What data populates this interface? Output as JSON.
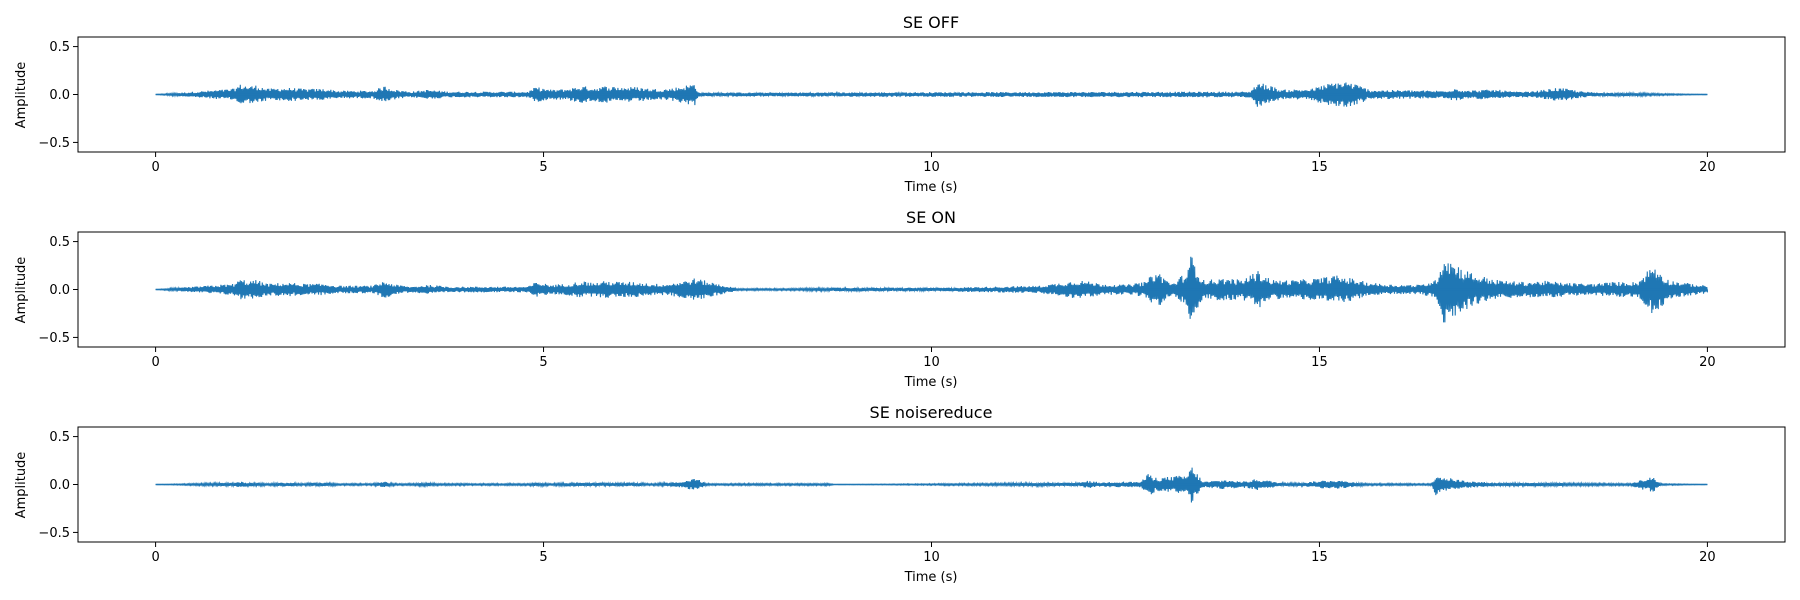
{
  "chart_data": [
    {
      "type": "line",
      "title": "SE OFF",
      "xlabel": "Time (s)",
      "ylabel": "Amplitude",
      "xlim": [
        -1,
        21
      ],
      "ylim": [
        -0.6,
        0.6
      ],
      "xticks": [
        0,
        5,
        10,
        15,
        20
      ],
      "xtick_labels": [
        "0",
        "5",
        "10",
        "15",
        "20"
      ],
      "yticks": [
        -0.5,
        0.0,
        0.5
      ],
      "ytick_labels": [
        "−0.5",
        "0.0",
        "0.5"
      ],
      "color": "#1f77b4",
      "grid": false,
      "series": [
        {
          "x": [
            0,
            1.0,
            1.1,
            1.2,
            1.3,
            1.45,
            1.6,
            1.75,
            1.9,
            2.05,
            2.2,
            2.35,
            2.8,
            2.95,
            3.1,
            3.3,
            3.5,
            3.65,
            3.8,
            4.8,
            4.9,
            5.1,
            5.3,
            5.5,
            5.65,
            5.8,
            6.0,
            6.2,
            6.4,
            6.6,
            6.8,
            6.95,
            7.0,
            14.1,
            14.2,
            14.35,
            14.5,
            14.9,
            15.05,
            15.2,
            15.35,
            15.5,
            15.65,
            16.6,
            16.75,
            16.9,
            17.1,
            17.3,
            17.5,
            17.7,
            17.9,
            18.05,
            18.2,
            18.4,
            18.6,
            18.8,
            20.0
          ],
          "envelope": [
            0,
            0.06,
            0.11,
            0.09,
            0.1,
            0.06,
            0.07,
            0.07,
            0.06,
            0.06,
            0.06,
            0.04,
            0.04,
            0.09,
            0.05,
            0.03,
            0.05,
            0.04,
            0.03,
            0.03,
            0.08,
            0.05,
            0.06,
            0.09,
            0.07,
            0.09,
            0.08,
            0.08,
            0.06,
            0.06,
            0.09,
            0.12,
            0.02,
            0.03,
            0.13,
            0.1,
            0.05,
            0.06,
            0.1,
            0.13,
            0.14,
            0.1,
            0.05,
            0.04,
            0.07,
            0.04,
            0.05,
            0.05,
            0.03,
            0.03,
            0.05,
            0.07,
            0.06,
            0.03,
            0.02,
            0.02,
            0
          ]
        }
      ]
    },
    {
      "type": "line",
      "title": "SE ON",
      "xlabel": "Time (s)",
      "ylabel": "Amplitude",
      "xlim": [
        -1,
        21
      ],
      "ylim": [
        -0.6,
        0.6
      ],
      "xticks": [
        0,
        5,
        10,
        15,
        20
      ],
      "xtick_labels": [
        "0",
        "5",
        "10",
        "15",
        "20"
      ],
      "yticks": [
        -0.5,
        0.0,
        0.5
      ],
      "ytick_labels": [
        "−0.5",
        "0.0",
        "0.5"
      ],
      "color": "#1f77b4",
      "grid": false,
      "series": [
        {
          "x": [
            0,
            1.0,
            1.1,
            1.2,
            1.3,
            1.45,
            1.6,
            1.75,
            1.9,
            2.05,
            2.2,
            2.35,
            2.8,
            2.95,
            3.1,
            3.3,
            3.5,
            3.65,
            3.8,
            4.8,
            4.9,
            5.1,
            5.3,
            5.5,
            5.65,
            5.8,
            6.0,
            6.2,
            6.4,
            6.6,
            6.8,
            6.95,
            7.5,
            8.2,
            8.8,
            9.5,
            10.2,
            10.8,
            11.4,
            11.9,
            12.2,
            12.5,
            12.75,
            12.9,
            13.1,
            13.3,
            13.35,
            13.5,
            13.8,
            14.0,
            14.2,
            14.4,
            14.7,
            15.0,
            15.2,
            15.4,
            15.6,
            15.8,
            16.0,
            16.3,
            16.5,
            16.6,
            16.8,
            17.0,
            17.3,
            17.6,
            17.9,
            18.2,
            18.5,
            18.8,
            19.1,
            19.3,
            19.5,
            19.8,
            20.0
          ],
          "envelope": [
            0,
            0.06,
            0.11,
            0.09,
            0.1,
            0.06,
            0.07,
            0.07,
            0.06,
            0.06,
            0.06,
            0.04,
            0.04,
            0.09,
            0.05,
            0.03,
            0.05,
            0.04,
            0.03,
            0.03,
            0.08,
            0.05,
            0.06,
            0.09,
            0.07,
            0.09,
            0.08,
            0.08,
            0.06,
            0.06,
            0.09,
            0.12,
            0.01,
            0.01,
            0.02,
            0.02,
            0.02,
            0.03,
            0.04,
            0.1,
            0.06,
            0.05,
            0.08,
            0.2,
            0.06,
            0.2,
            0.38,
            0.1,
            0.12,
            0.1,
            0.2,
            0.1,
            0.1,
            0.12,
            0.15,
            0.12,
            0.08,
            0.06,
            0.05,
            0.05,
            0.1,
            0.38,
            0.25,
            0.16,
            0.1,
            0.08,
            0.09,
            0.07,
            0.06,
            0.08,
            0.08,
            0.27,
            0.1,
            0.06,
            0.04
          ]
        }
      ]
    },
    {
      "type": "line",
      "title": "SE noisereduce",
      "xlabel": "Time (s)",
      "ylabel": "Amplitude",
      "xlim": [
        -1,
        21
      ],
      "ylim": [
        -0.6,
        0.6
      ],
      "xticks": [
        0,
        5,
        10,
        15,
        20
      ],
      "xtick_labels": [
        "0",
        "5",
        "10",
        "15",
        "20"
      ],
      "yticks": [
        -0.5,
        0.0,
        0.5
      ],
      "ytick_labels": [
        "−0.5",
        "0.0",
        "0.5"
      ],
      "color": "#1f77b4",
      "grid": false,
      "series": [
        {
          "x": [
            0,
            1.0,
            1.1,
            1.2,
            1.3,
            1.45,
            1.6,
            1.75,
            1.9,
            2.05,
            2.2,
            2.35,
            2.8,
            2.95,
            3.1,
            3.3,
            3.5,
            3.65,
            3.8,
            4.8,
            4.9,
            5.1,
            5.3,
            5.5,
            5.65,
            5.8,
            6.0,
            6.2,
            6.4,
            6.6,
            6.8,
            6.95,
            7.1,
            8.7,
            8.75,
            11.9,
            12.0,
            12.2,
            12.3,
            12.7,
            12.8,
            12.9,
            13.3,
            13.35,
            13.5,
            13.8,
            14.0,
            14.2,
            14.5,
            14.8,
            15.0,
            15.2,
            15.4,
            15.6,
            16.45,
            16.5,
            16.6,
            16.8,
            17.0,
            17.3,
            17.6,
            19.0,
            19.1,
            19.3,
            19.4,
            20.0
          ],
          "envelope": [
            0,
            0.02,
            0.03,
            0.02,
            0.02,
            0.01,
            0.02,
            0.02,
            0.01,
            0.02,
            0.02,
            0.01,
            0.01,
            0.03,
            0.01,
            0.01,
            0.02,
            0.01,
            0.01,
            0.01,
            0.02,
            0.01,
            0.02,
            0.02,
            0.02,
            0.02,
            0.02,
            0.02,
            0.01,
            0.02,
            0.03,
            0.07,
            0.01,
            0.01,
            0.0,
            0.02,
            0.04,
            0.02,
            0.03,
            0.03,
            0.12,
            0.07,
            0.1,
            0.2,
            0.03,
            0.05,
            0.03,
            0.06,
            0.02,
            0.02,
            0.04,
            0.05,
            0.03,
            0.01,
            0.01,
            0.12,
            0.08,
            0.05,
            0.03,
            0.02,
            0.02,
            0.01,
            0.04,
            0.08,
            0.01,
            0
          ]
        }
      ]
    }
  ]
}
